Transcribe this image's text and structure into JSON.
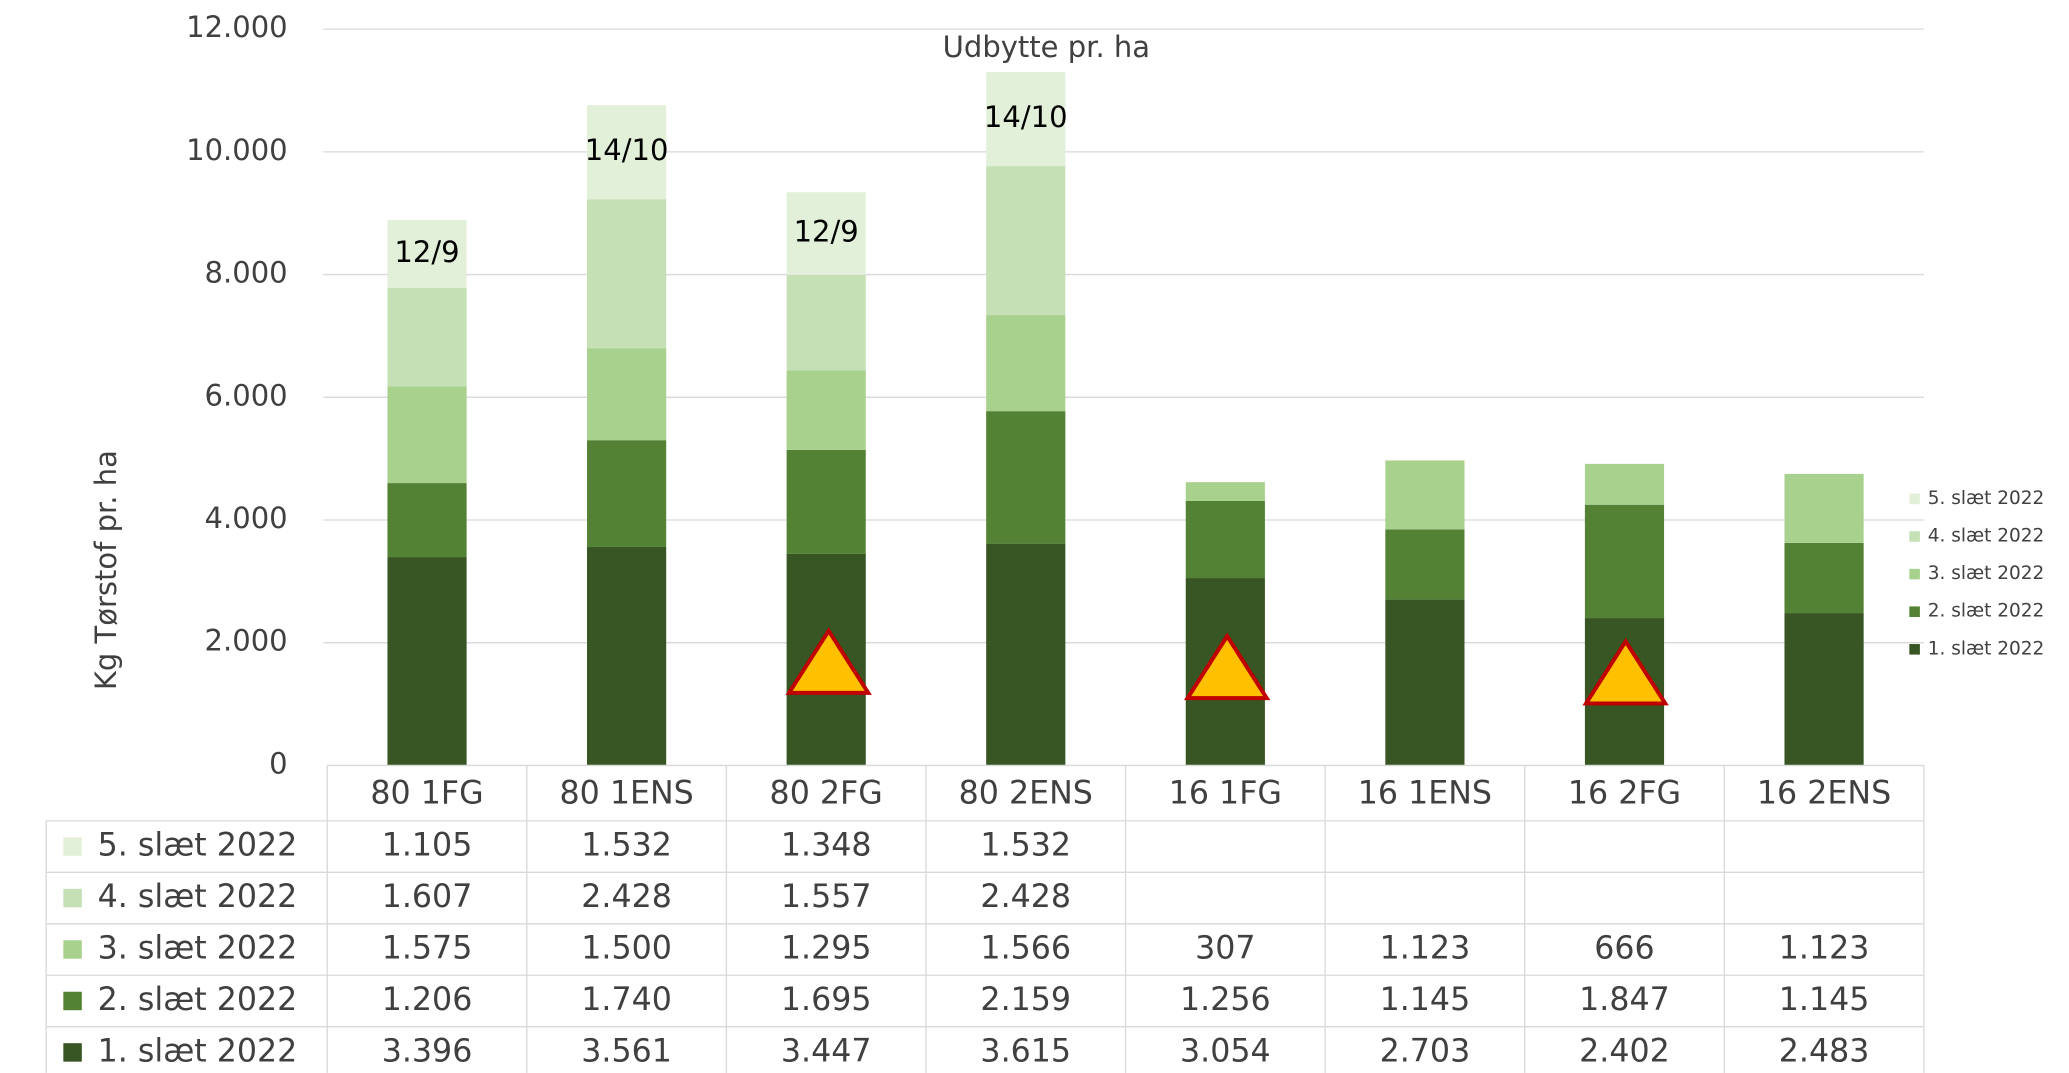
{
  "chart_data": {
    "type": "bar",
    "stacked": true,
    "title": "Udbytte pr. ha",
    "y_label": "Kg Tørstof pr. ha",
    "categories": [
      "80 1FG",
      "80 1ENS",
      "80 2FG",
      "80 2ENS",
      "16 1FG",
      "16 1ENS",
      "16 2FG",
      "16 2ENS"
    ],
    "series": [
      {
        "name": "1. slæt 2022",
        "color": "#375623",
        "values": [
          3396,
          3561,
          3447,
          3615,
          3054,
          2703,
          2402,
          2483
        ],
        "value_labels": [
          "3.396",
          "3.561",
          "3.447",
          "3.615",
          "3.054",
          "2.703",
          "2.402",
          "2.483"
        ]
      },
      {
        "name": "2. slæt 2022",
        "color": "#548235",
        "values": [
          1206,
          1740,
          1695,
          2159,
          1256,
          1145,
          1847,
          1145
        ],
        "value_labels": [
          "1.206",
          "1.740",
          "1.695",
          "2.159",
          "1.256",
          "1.145",
          "1.847",
          "1.145"
        ]
      },
      {
        "name": "3. slæt 2022",
        "color": "#a9d18e",
        "values": [
          1575,
          1500,
          1295,
          1566,
          307,
          1123,
          666,
          1123
        ],
        "value_labels": [
          "1.575",
          "1.500",
          "1.295",
          "1.566",
          "307",
          "1.123",
          "666",
          "1.123"
        ]
      },
      {
        "name": "4. slæt 2022",
        "color": "#c5e0b4",
        "values": [
          1607,
          2428,
          1557,
          2428,
          null,
          null,
          null,
          null
        ],
        "value_labels": [
          "1.607",
          "2.428",
          "1.557",
          "2.428",
          null,
          null,
          null,
          null
        ]
      },
      {
        "name": "5. slæt 2022",
        "color": "#e2f0d9",
        "values": [
          1105,
          1532,
          1348,
          1532,
          null,
          null,
          null,
          null
        ],
        "value_labels": [
          "1.105",
          "1.532",
          "1.348",
          "1.532",
          null,
          null,
          null,
          null
        ]
      }
    ],
    "annotations": [
      {
        "text": "12/9",
        "x": "80 1FG"
      },
      {
        "text": "14/10",
        "x": "80 1ENS"
      },
      {
        "text": "12/9",
        "x": "80 2FG"
      },
      {
        "text": "14/10",
        "x": "80 2ENS"
      }
    ],
    "ylim": [
      0,
      12000
    ],
    "yticks": [
      0,
      {
        "value": 2000,
        "label": "2.000"
      },
      {
        "value": 4000,
        "label": "4.000"
      },
      {
        "value": 6000,
        "label": "6.000"
      },
      {
        "value": 8000,
        "label": "8.000"
      },
      {
        "value": 10000,
        "label": "10.000"
      },
      {
        "value": 12000,
        "label": "12.000"
      }
    ],
    "grid": true,
    "legend": "right"
  }
}
